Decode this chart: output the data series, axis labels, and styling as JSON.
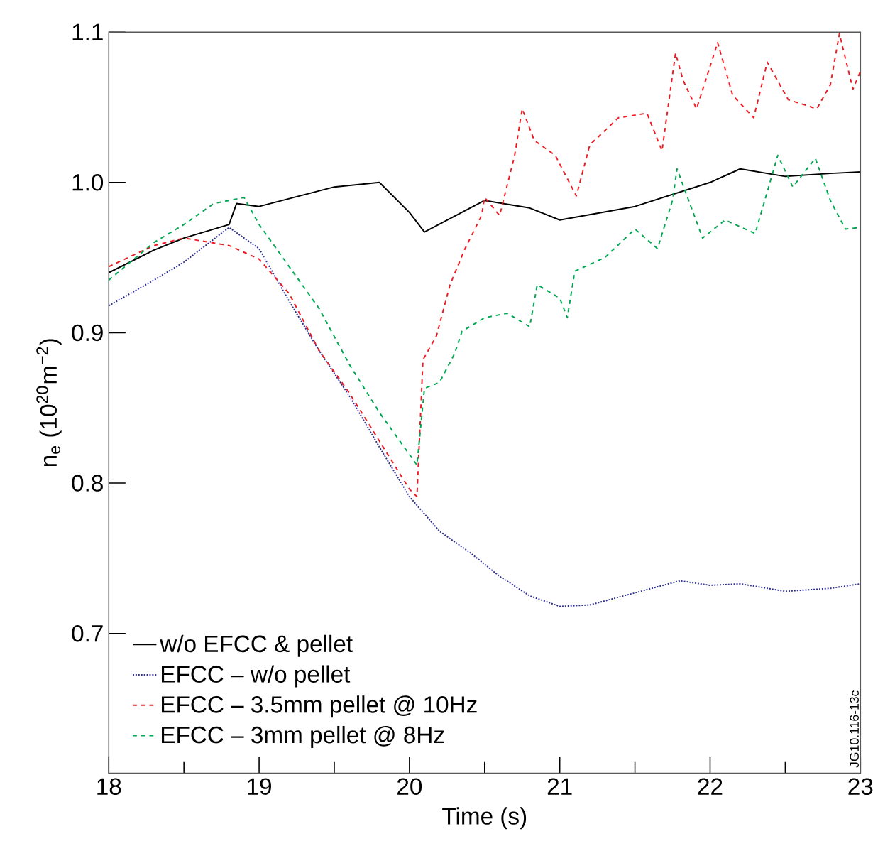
{
  "chart_data": {
    "type": "line",
    "xlabel": "Time (s)",
    "ylabel": "n$_{e}$ (10$^{20}$m$^{−2}$)",
    "xlim": [
      18,
      23
    ],
    "ylim": [
      0.607,
      1.1
    ],
    "xticks": [
      18,
      19,
      20,
      21,
      22,
      23
    ],
    "yticks": [
      0.7,
      0.8,
      0.9,
      {
        "value": 1.0,
        "label": "1.0"
      },
      1.1
    ],
    "legend": "bottom left",
    "grid": false,
    "annotations": [
      "JG10.116-13c"
    ],
    "series": [
      {
        "name": "w/o EFCC & pellet",
        "color": "#000000",
        "line_style": "solid",
        "x": [
          18.0,
          18.3,
          18.5,
          18.8,
          18.85,
          19.0,
          19.5,
          19.8,
          20.0,
          20.1,
          20.5,
          20.8,
          21.0,
          21.5,
          22.0,
          22.2,
          22.5,
          22.8,
          23.0
        ],
        "values": [
          0.94,
          0.955,
          0.963,
          0.972,
          0.986,
          0.984,
          0.997,
          1.0,
          0.98,
          0.967,
          0.988,
          0.983,
          0.975,
          0.984,
          1.0,
          1.009,
          1.004,
          1.006,
          1.007
        ]
      },
      {
        "name": "EFCC – w/o pellet",
        "color": "#2e3192",
        "line_style": "dotted",
        "x": [
          18.0,
          18.3,
          18.5,
          18.8,
          19.0,
          19.2,
          19.4,
          19.6,
          19.8,
          20.0,
          20.2,
          20.4,
          20.6,
          20.8,
          21.0,
          21.2,
          21.5,
          21.8,
          22.0,
          22.2,
          22.5,
          22.8,
          23.0
        ],
        "values": [
          0.918,
          0.935,
          0.947,
          0.97,
          0.956,
          0.921,
          0.888,
          0.858,
          0.824,
          0.791,
          0.768,
          0.754,
          0.738,
          0.725,
          0.718,
          0.719,
          0.727,
          0.735,
          0.732,
          0.733,
          0.728,
          0.73,
          0.733
        ]
      },
      {
        "name": "EFCC – 3.5mm pellet @ 10Hz",
        "color": "#ed1c24",
        "line_style": "dashed",
        "x": [
          18.0,
          18.3,
          18.5,
          18.8,
          19.0,
          19.2,
          19.4,
          19.6,
          19.8,
          20.0,
          20.05,
          20.09,
          20.18,
          20.27,
          20.37,
          20.48,
          20.5,
          20.6,
          20.7,
          20.75,
          20.83,
          20.97,
          21.11,
          21.2,
          21.39,
          21.58,
          21.68,
          21.77,
          21.82,
          21.91,
          22.05,
          22.15,
          22.29,
          22.38,
          22.52,
          22.71,
          22.8,
          22.86,
          22.95,
          23.0
        ],
        "values": [
          0.944,
          0.958,
          0.963,
          0.958,
          0.949,
          0.926,
          0.888,
          0.86,
          0.828,
          0.796,
          0.791,
          0.882,
          0.898,
          0.932,
          0.956,
          0.978,
          0.99,
          0.978,
          1.018,
          1.049,
          1.028,
          1.018,
          0.991,
          1.025,
          1.043,
          1.046,
          1.021,
          1.086,
          1.068,
          1.049,
          1.093,
          1.058,
          1.043,
          1.08,
          1.055,
          1.049,
          1.065,
          1.099,
          1.062,
          1.074
        ]
      },
      {
        "name": "EFCC – 3mm pellet @ 8Hz",
        "color": "#00a651",
        "line_style": "dashed",
        "x": [
          18.0,
          18.3,
          18.5,
          18.7,
          18.9,
          19.0,
          19.2,
          19.4,
          19.6,
          19.8,
          20.0,
          20.05,
          20.1,
          20.2,
          20.3,
          20.35,
          20.5,
          20.65,
          20.8,
          20.85,
          21.0,
          21.05,
          21.1,
          21.3,
          21.5,
          21.65,
          21.75,
          21.78,
          21.95,
          22.1,
          22.3,
          22.45,
          22.55,
          22.7,
          22.8,
          22.9,
          23.0
        ],
        "values": [
          0.935,
          0.96,
          0.972,
          0.986,
          0.99,
          0.972,
          0.944,
          0.916,
          0.879,
          0.847,
          0.819,
          0.812,
          0.863,
          0.867,
          0.886,
          0.901,
          0.91,
          0.913,
          0.904,
          0.932,
          0.923,
          0.91,
          0.941,
          0.95,
          0.969,
          0.956,
          0.988,
          1.009,
          0.963,
          0.975,
          0.966,
          1.018,
          0.997,
          1.016,
          0.988,
          0.969,
          0.97
        ]
      }
    ]
  }
}
